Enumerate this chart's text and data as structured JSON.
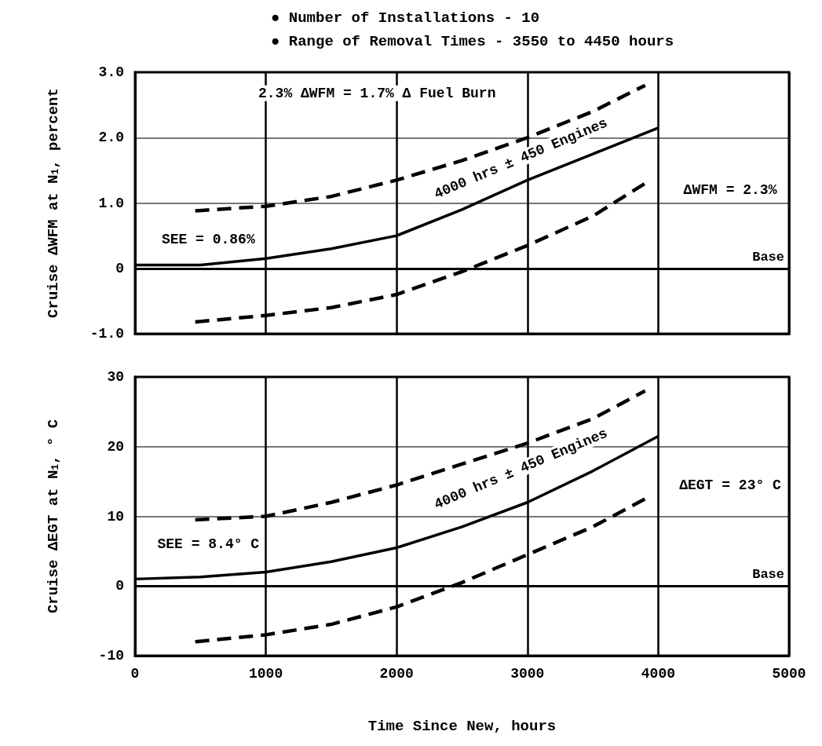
{
  "chart_data": [
    {
      "type": "line",
      "title": "● Number of Installations - 10",
      "subtitle": "● Range of Removal Times - 3550 to 4450 hours",
      "ylabel": "Cruise ΔWFM at N$_{1}$, percent",
      "xlim": [
        0,
        5000
      ],
      "xticks": [
        0,
        1000,
        2000,
        3000,
        4000,
        5000
      ],
      "ylim": [
        -1.0,
        3.0
      ],
      "yticks": [
        {
          "value": -1,
          "label": "-1.0"
        },
        {
          "value": 0,
          "label": "0"
        },
        {
          "value": 1,
          "label": "1.0"
        },
        {
          "value": 2,
          "label": "2.0"
        },
        {
          "value": 3,
          "label": "3.0"
        }
      ],
      "tick_labels": "y",
      "grid": true,
      "marker": "none",
      "series": [
        {
          "color": "#000000",
          "line_style": "dashed",
          "x": [
            460,
            1000,
            1500,
            2000,
            2500,
            3000,
            3500,
            3900
          ],
          "values": [
            0.88,
            0.95,
            1.1,
            1.35,
            1.65,
            2.0,
            2.4,
            2.8
          ]
        },
        {
          "color": "#000000",
          "line_style": "solid",
          "x": [
            0,
            500,
            1000,
            1500,
            2000,
            2500,
            3000,
            3500,
            4000
          ],
          "values": [
            0.05,
            0.05,
            0.15,
            0.3,
            0.5,
            0.9,
            1.35,
            1.75,
            2.15
          ]
        },
        {
          "color": "#000000",
          "line_style": "dashed",
          "x": [
            460,
            1000,
            1500,
            2000,
            2500,
            3000,
            3500,
            3900
          ],
          "values": [
            -0.82,
            -0.72,
            -0.6,
            -0.4,
            -0.05,
            0.35,
            0.8,
            1.3
          ]
        }
      ],
      "ref_lines": [
        {
          "axis": "y",
          "value": 0,
          "label": "Base",
          "color": "#000000"
        }
      ],
      "annotations": [
        "2.3% ΔWFM = 1.7% Δ Fuel Burn",
        "4000 hrs ± 450 Engines",
        "ΔWFM = 2.3%",
        "SEE = 0.86%"
      ]
    },
    {
      "type": "line",
      "ylabel": "Cruise ΔEGT at N$_{1}$, ° C",
      "xlabel": "Time Since New, hours",
      "xlim": [
        0,
        5000
      ],
      "xticks": [
        0,
        1000,
        2000,
        3000,
        4000,
        5000
      ],
      "ylim": [
        -10,
        30
      ],
      "yticks": [
        -10,
        0,
        10,
        20,
        30
      ],
      "grid": true,
      "marker": "none",
      "series": [
        {
          "color": "#000000",
          "line_style": "dashed",
          "x": [
            460,
            1000,
            1500,
            2000,
            2500,
            3000,
            3500,
            3900
          ],
          "values": [
            9.5,
            10,
            12,
            14.5,
            17.5,
            20.5,
            24,
            28
          ]
        },
        {
          "color": "#000000",
          "line_style": "solid",
          "x": [
            0,
            500,
            1000,
            1500,
            2000,
            2500,
            3000,
            3500,
            4000
          ],
          "values": [
            1,
            1.3,
            2,
            3.5,
            5.5,
            8.5,
            12,
            16.5,
            21.5
          ]
        },
        {
          "color": "#000000",
          "line_style": "dashed",
          "x": [
            460,
            1000,
            1500,
            2000,
            2500,
            3000,
            3500,
            3900
          ],
          "values": [
            -8,
            -7,
            -5.5,
            -3,
            0.5,
            4.5,
            8.5,
            12.5
          ]
        }
      ],
      "ref_lines": [
        {
          "axis": "y",
          "value": 0,
          "label": "Base",
          "color": "#000000"
        }
      ],
      "annotations": [
        "4000 hrs ± 450 Engines",
        "ΔEGT = 23° C",
        "SEE = 8.4° C"
      ]
    }
  ]
}
